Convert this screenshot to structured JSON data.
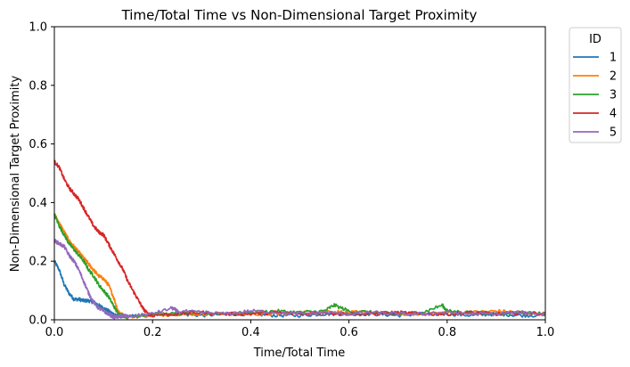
{
  "chart_data": {
    "type": "line",
    "title": "Time/Total Time vs Non-Dimensional Target Proximity",
    "xlabel": "Time/Total Time",
    "ylabel": "Non-Dimensional Target Proximity",
    "xlim": [
      0,
      1
    ],
    "ylim": [
      0,
      1
    ],
    "xticks": [
      "0.0",
      "0.2",
      "0.4",
      "0.6",
      "0.8",
      "1.0"
    ],
    "yticks": [
      "0.0",
      "0.2",
      "0.4",
      "0.6",
      "0.8",
      "1.0"
    ],
    "grid": false,
    "legend": {
      "title": "ID",
      "placement": "outside-top-right"
    },
    "series": [
      {
        "name": "1",
        "color": "#1f77b4",
        "x": [
          0,
          0.01,
          0.02,
          0.03,
          0.04,
          0.05,
          0.06,
          0.07,
          0.08,
          0.09,
          0.1,
          0.11,
          0.12,
          0.13,
          0.14,
          0.15,
          0.2,
          0.25,
          0.3,
          0.35,
          0.4,
          0.45,
          0.5,
          0.55,
          0.6,
          0.65,
          0.7,
          0.75,
          0.8,
          0.85,
          0.9,
          0.95,
          1.0
        ],
        "y": [
          0.2,
          0.17,
          0.12,
          0.09,
          0.07,
          0.07,
          0.065,
          0.065,
          0.06,
          0.05,
          0.04,
          0.03,
          0.02,
          0.015,
          0.01,
          0.01,
          0.02,
          0.02,
          0.015,
          0.02,
          0.02,
          0.015,
          0.015,
          0.02,
          0.02,
          0.02,
          0.015,
          0.02,
          0.02,
          0.015,
          0.02,
          0.015,
          0.015
        ]
      },
      {
        "name": "2",
        "color": "#ff7f0e",
        "x": [
          0,
          0.01,
          0.02,
          0.03,
          0.04,
          0.05,
          0.06,
          0.07,
          0.08,
          0.09,
          0.1,
          0.11,
          0.12,
          0.13,
          0.14,
          0.15,
          0.2,
          0.25,
          0.3,
          0.35,
          0.4,
          0.45,
          0.5,
          0.55,
          0.6,
          0.65,
          0.7,
          0.75,
          0.8,
          0.85,
          0.9,
          0.95,
          1.0
        ],
        "y": [
          0.36,
          0.33,
          0.3,
          0.27,
          0.25,
          0.23,
          0.21,
          0.19,
          0.17,
          0.15,
          0.14,
          0.12,
          0.08,
          0.03,
          0.015,
          0.01,
          0.015,
          0.02,
          0.02,
          0.02,
          0.02,
          0.02,
          0.025,
          0.03,
          0.025,
          0.025,
          0.02,
          0.02,
          0.025,
          0.025,
          0.03,
          0.025,
          0.02
        ]
      },
      {
        "name": "3",
        "color": "#2ca02c",
        "x": [
          0,
          0.01,
          0.02,
          0.03,
          0.04,
          0.05,
          0.06,
          0.07,
          0.08,
          0.09,
          0.1,
          0.11,
          0.12,
          0.13,
          0.14,
          0.15,
          0.2,
          0.25,
          0.3,
          0.35,
          0.4,
          0.45,
          0.5,
          0.55,
          0.57,
          0.6,
          0.65,
          0.7,
          0.75,
          0.79,
          0.8,
          0.85,
          0.9,
          0.95,
          1.0
        ],
        "y": [
          0.36,
          0.32,
          0.29,
          0.26,
          0.24,
          0.22,
          0.2,
          0.17,
          0.15,
          0.12,
          0.1,
          0.08,
          0.05,
          0.02,
          0.015,
          0.01,
          0.02,
          0.02,
          0.025,
          0.02,
          0.025,
          0.03,
          0.025,
          0.03,
          0.05,
          0.03,
          0.025,
          0.02,
          0.025,
          0.05,
          0.03,
          0.025,
          0.02,
          0.025,
          0.02
        ]
      },
      {
        "name": "4",
        "color": "#d62728",
        "x": [
          0,
          0.01,
          0.02,
          0.03,
          0.04,
          0.05,
          0.06,
          0.07,
          0.08,
          0.09,
          0.1,
          0.11,
          0.12,
          0.13,
          0.14,
          0.15,
          0.16,
          0.17,
          0.18,
          0.19,
          0.2,
          0.25,
          0.3,
          0.35,
          0.4,
          0.45,
          0.5,
          0.55,
          0.6,
          0.65,
          0.7,
          0.75,
          0.8,
          0.85,
          0.9,
          0.95,
          1.0
        ],
        "y": [
          0.54,
          0.52,
          0.48,
          0.45,
          0.43,
          0.41,
          0.38,
          0.35,
          0.32,
          0.3,
          0.29,
          0.26,
          0.23,
          0.2,
          0.17,
          0.13,
          0.1,
          0.07,
          0.04,
          0.02,
          0.015,
          0.02,
          0.025,
          0.02,
          0.02,
          0.025,
          0.02,
          0.025,
          0.02,
          0.02,
          0.025,
          0.02,
          0.02,
          0.025,
          0.02,
          0.025,
          0.02
        ]
      },
      {
        "name": "5",
        "color": "#9467bd",
        "x": [
          0,
          0.01,
          0.02,
          0.03,
          0.04,
          0.05,
          0.06,
          0.07,
          0.08,
          0.09,
          0.1,
          0.11,
          0.12,
          0.13,
          0.14,
          0.15,
          0.2,
          0.24,
          0.25,
          0.3,
          0.35,
          0.4,
          0.45,
          0.5,
          0.55,
          0.6,
          0.65,
          0.7,
          0.75,
          0.8,
          0.85,
          0.9,
          0.95,
          1.0
        ],
        "y": [
          0.27,
          0.26,
          0.25,
          0.22,
          0.2,
          0.17,
          0.13,
          0.09,
          0.06,
          0.04,
          0.03,
          0.02,
          0.01,
          0.01,
          0.015,
          0.01,
          0.02,
          0.04,
          0.03,
          0.025,
          0.02,
          0.03,
          0.025,
          0.02,
          0.025,
          0.02,
          0.025,
          0.02,
          0.02,
          0.025,
          0.02,
          0.02,
          0.025,
          0.02
        ]
      }
    ]
  }
}
